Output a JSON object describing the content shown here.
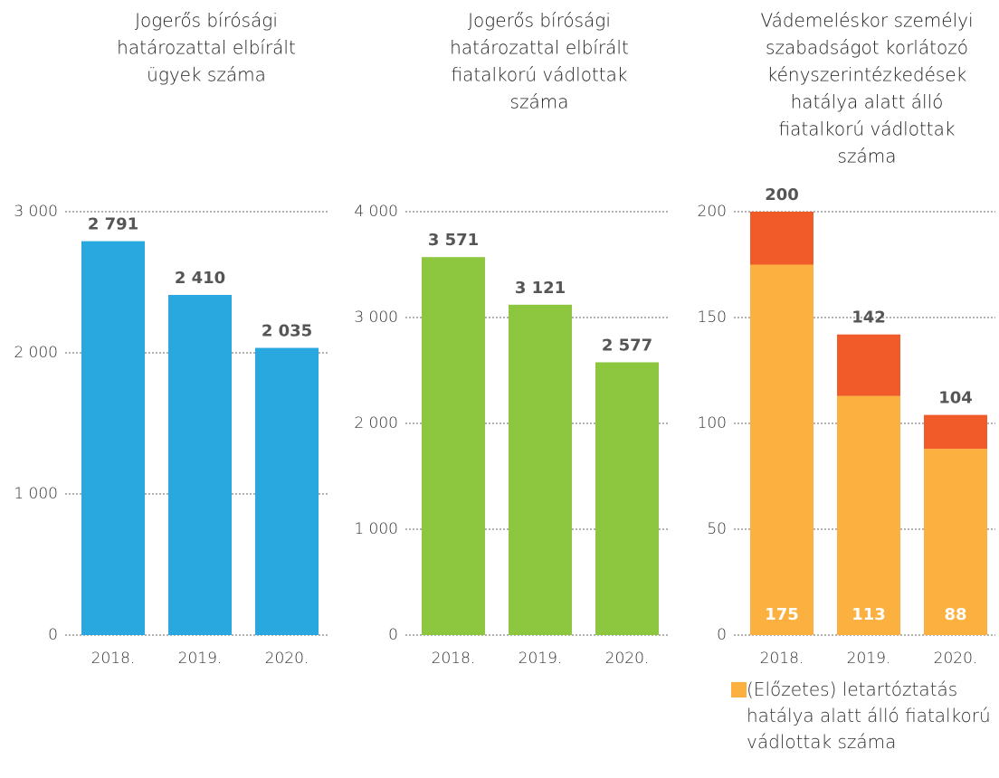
{
  "chart_data": [
    {
      "type": "bar",
      "title": [
        "Jogerős bírósági",
        "határozattal elbírált",
        "ügyek száma"
      ],
      "categories": [
        "2018.",
        "2019.",
        "2020."
      ],
      "values": [
        2791,
        2410,
        2035
      ],
      "value_labels": [
        "2 791",
        "2 410",
        "2 035"
      ],
      "color": "#29a8e0",
      "ylim": [
        0,
        3000
      ],
      "yticks": [
        0,
        {
          "value": 1000,
          "label": "1 000"
        },
        {
          "value": 2000,
          "label": "2 000"
        },
        {
          "value": 3000,
          "label": "3 000"
        }
      ],
      "grid": true
    },
    {
      "type": "bar",
      "title": [
        "Jogerős bírósági",
        "határozattal elbírált",
        "fiatalkorú vádlottak",
        "száma"
      ],
      "categories": [
        "2018.",
        "2019.",
        "2020."
      ],
      "values": [
        3571,
        3121,
        2577
      ],
      "value_labels": [
        "3 571",
        "3 121",
        "2 577"
      ],
      "color": "#8dc63f",
      "ylim": [
        0,
        4000
      ],
      "yticks": [
        0,
        {
          "value": 1000,
          "label": "1 000"
        },
        {
          "value": 2000,
          "label": "2 000"
        },
        {
          "value": 3000,
          "label": "3 000"
        },
        {
          "value": 4000,
          "label": "4 000"
        }
      ],
      "grid": true
    },
    {
      "type": "stacked_bar",
      "title": [
        "Vádemeléskor személyi",
        "szabadságot korlátozó",
        "kényszerintézkedések",
        "hatálya alatt álló",
        "fiatalkorú vádlottak",
        "száma"
      ],
      "categories": [
        "2018.",
        "2019.",
        "2020."
      ],
      "series": [
        {
          "name": "(Előzetes) letartóztatás hatálya alatt álló fiatalkorú vádlottak száma",
          "color": "#fbb040",
          "values": [
            175,
            113,
            88
          ]
        },
        {
          "color": "#f15a29",
          "values": [
            25,
            29,
            16
          ]
        }
      ],
      "totals": [
        200,
        142,
        104
      ],
      "ylim": [
        0,
        200
      ],
      "yticks": [
        0,
        50,
        100,
        150,
        200
      ],
      "grid": true
    }
  ]
}
